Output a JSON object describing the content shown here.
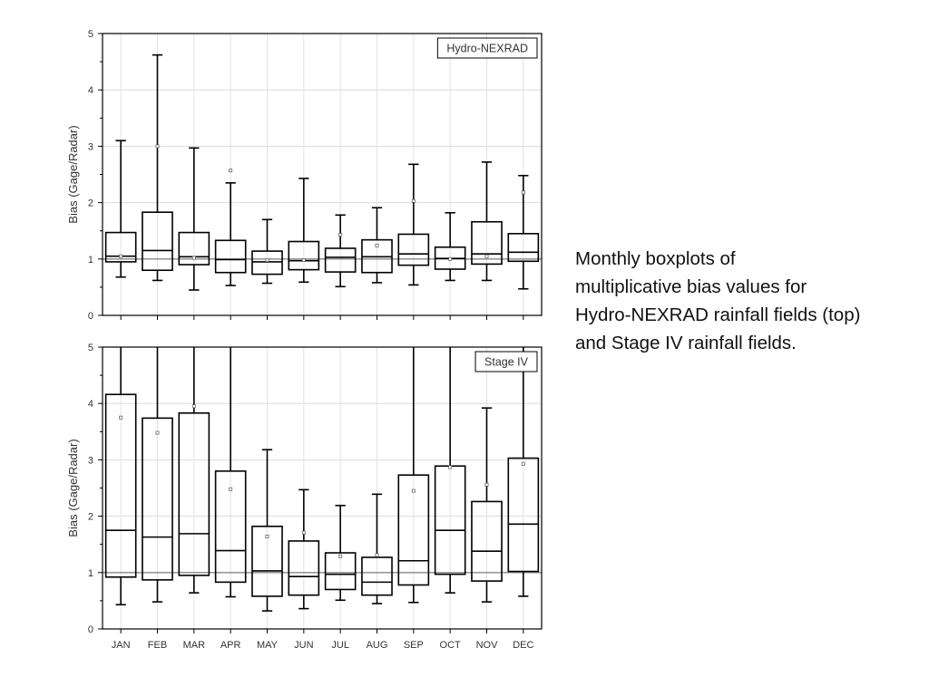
{
  "caption": {
    "lines": [
      "Monthly boxplots of",
      "multiplicative bias values for",
      "Hydro-NEXRAD rainfall fields (top)",
      "and Stage IV rainfall fields."
    ]
  },
  "chart_data": [
    {
      "type": "box",
      "title": "Hydro-NEXRAD",
      "ylabel": "Bias (Gage/Radar)",
      "ylim": [
        0,
        5
      ],
      "yticks": [
        "0",
        "1",
        "2",
        "3",
        "4",
        "5"
      ],
      "grid": true,
      "reference_line": 1,
      "legend_position": "top-right",
      "categories": [
        "JAN",
        "FEB",
        "MAR",
        "APR",
        "MAY",
        "JUN",
        "JUL",
        "AUG",
        "SEP",
        "OCT",
        "NOV",
        "DEC"
      ],
      "boxes": [
        {
          "min": 0.68,
          "q1": 0.95,
          "median": 1.05,
          "q3": 1.47,
          "max": 3.1,
          "mean": 1.05
        },
        {
          "min": 0.62,
          "q1": 0.8,
          "median": 1.15,
          "q3": 1.83,
          "max": 4.62,
          "mean": 3.0
        },
        {
          "min": 0.45,
          "q1": 0.9,
          "median": 1.04,
          "q3": 1.47,
          "max": 2.97,
          "mean": 1.02
        },
        {
          "min": 0.53,
          "q1": 0.76,
          "median": 0.99,
          "q3": 1.33,
          "max": 2.35,
          "mean": 2.57
        },
        {
          "min": 0.57,
          "q1": 0.73,
          "median": 0.95,
          "q3": 1.14,
          "max": 1.7,
          "mean": 0.98
        },
        {
          "min": 0.59,
          "q1": 0.81,
          "median": 0.97,
          "q3": 1.31,
          "max": 2.43,
          "mean": 0.98
        },
        {
          "min": 0.51,
          "q1": 0.77,
          "median": 1.03,
          "q3": 1.19,
          "max": 1.78,
          "mean": 1.43
        },
        {
          "min": 0.58,
          "q1": 0.76,
          "median": 1.04,
          "q3": 1.34,
          "max": 1.91,
          "mean": 1.24
        },
        {
          "min": 0.54,
          "q1": 0.89,
          "median": 1.09,
          "q3": 1.44,
          "max": 2.68,
          "mean": 2.03
        },
        {
          "min": 0.62,
          "q1": 0.82,
          "median": 1.01,
          "q3": 1.21,
          "max": 1.82,
          "mean": 1.0
        },
        {
          "min": 0.62,
          "q1": 0.91,
          "median": 1.09,
          "q3": 1.66,
          "max": 2.72,
          "mean": 1.05
        },
        {
          "min": 0.47,
          "q1": 0.96,
          "median": 1.12,
          "q3": 1.45,
          "max": 2.48,
          "mean": 2.18
        }
      ]
    },
    {
      "type": "box",
      "title": "Stage IV",
      "ylabel": "Bias (Gage/Radar)",
      "ylim": [
        0,
        5
      ],
      "yticks": [
        "0",
        "1",
        "2",
        "3",
        "4",
        "5"
      ],
      "grid": true,
      "reference_line": 1,
      "legend_position": "top-right",
      "categories": [
        "JAN",
        "FEB",
        "MAR",
        "APR",
        "MAY",
        "JUN",
        "JUL",
        "AUG",
        "SEP",
        "OCT",
        "NOV",
        "DEC"
      ],
      "boxes": [
        {
          "min": 0.43,
          "q1": 0.92,
          "median": 1.75,
          "q3": 4.16,
          "max": 5.0,
          "mean": 3.75
        },
        {
          "min": 0.48,
          "q1": 0.87,
          "median": 1.63,
          "q3": 3.74,
          "max": 5.0,
          "mean": 3.48
        },
        {
          "min": 0.64,
          "q1": 0.95,
          "median": 1.69,
          "q3": 3.83,
          "max": 5.0,
          "mean": 3.95
        },
        {
          "min": 0.57,
          "q1": 0.83,
          "median": 1.39,
          "q3": 2.8,
          "max": 5.0,
          "mean": 2.48
        },
        {
          "min": 0.32,
          "q1": 0.58,
          "median": 1.03,
          "q3": 1.82,
          "max": 3.18,
          "mean": 1.64
        },
        {
          "min": 0.36,
          "q1": 0.6,
          "median": 0.93,
          "q3": 1.56,
          "max": 2.47,
          "mean": 1.71
        },
        {
          "min": 0.51,
          "q1": 0.7,
          "median": 0.97,
          "q3": 1.35,
          "max": 2.19,
          "mean": 1.29
        },
        {
          "min": 0.45,
          "q1": 0.6,
          "median": 0.83,
          "q3": 1.27,
          "max": 2.39,
          "mean": 1.31
        },
        {
          "min": 0.47,
          "q1": 0.78,
          "median": 1.21,
          "q3": 2.73,
          "max": 5.0,
          "mean": 2.45
        },
        {
          "min": 0.64,
          "q1": 0.97,
          "median": 1.75,
          "q3": 2.89,
          "max": 5.0,
          "mean": 2.87
        },
        {
          "min": 0.48,
          "q1": 0.85,
          "median": 1.38,
          "q3": 2.26,
          "max": 3.92,
          "mean": 2.56
        },
        {
          "min": 0.58,
          "q1": 1.02,
          "median": 1.86,
          "q3": 3.03,
          "max": 5.0,
          "mean": 2.93
        }
      ]
    }
  ]
}
